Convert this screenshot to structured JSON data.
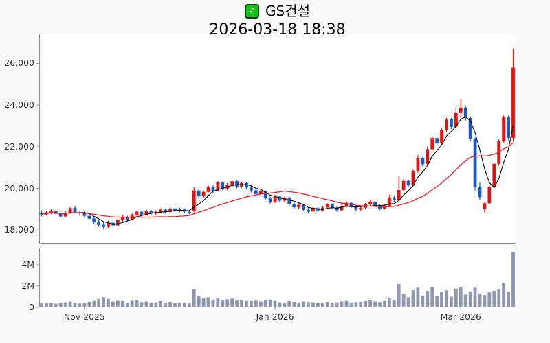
{
  "title": {
    "symbol": "GS건설",
    "datetime": "2026-03-18 18:38",
    "checkbox_glyph": "✓"
  },
  "colors": {
    "up_candle": "#dd1414",
    "down_candle": "#1a58c8",
    "ma_fast": "#000000",
    "ma_slow": "#ee2222",
    "volume_bar": "#9098b4",
    "spine": "#8a8a8a",
    "background": "#fafafa",
    "plot_background": "#ffffff",
    "check_green": "#17c317",
    "tick_text": "#33333f"
  },
  "chart_data": {
    "type": "candlestick",
    "title": "GS건설",
    "subtitle": "2026-03-18 18:38",
    "legend_position": "none",
    "grid": false,
    "price_axis_range": [
      17350,
      27400
    ],
    "volume_axis_range_millions": [
      0,
      5.8
    ],
    "y_ticks": [
      {
        "label": "18,000",
        "value": 18000
      },
      {
        "label": "20,000",
        "value": 20000
      },
      {
        "label": "22,000",
        "value": 22000
      },
      {
        "label": "24,000",
        "value": 24000
      },
      {
        "label": "26,000",
        "value": 26000
      }
    ],
    "x_ticks": [
      {
        "label": "Nov 2025",
        "index": 9
      },
      {
        "label": "Jan 2026",
        "index": 49
      },
      {
        "label": "Mar 2026",
        "index": 88
      }
    ],
    "volume_ticks": [
      {
        "label": "0",
        "value": 0
      },
      {
        "label": "2M",
        "value": 2
      },
      {
        "label": "4M",
        "value": 4
      }
    ],
    "volume_unit": "millions",
    "moving_averages": [
      {
        "name": "ma-fast",
        "window": 5,
        "color": "#000000",
        "width": 1.1
      },
      {
        "name": "ma-slow",
        "window": 20,
        "color": "#ee2222",
        "width": 1.3
      }
    ],
    "candles_format": [
      "open",
      "high",
      "low",
      "close",
      "volume_millions"
    ],
    "candles": [
      [
        18800,
        18950,
        18650,
        18750,
        0.45
      ],
      [
        18750,
        18900,
        18700,
        18850,
        0.38
      ],
      [
        18850,
        19000,
        18750,
        18900,
        0.42
      ],
      [
        18900,
        18950,
        18700,
        18780,
        0.35
      ],
      [
        18780,
        18850,
        18600,
        18650,
        0.4
      ],
      [
        18650,
        18900,
        18600,
        18820,
        0.48
      ],
      [
        18820,
        19100,
        18780,
        19050,
        0.55
      ],
      [
        19050,
        19150,
        18800,
        18850,
        0.42
      ],
      [
        18850,
        18950,
        18700,
        18800,
        0.36
      ],
      [
        18800,
        18900,
        18600,
        18680,
        0.4
      ],
      [
        18680,
        18750,
        18450,
        18550,
        0.52
      ],
      [
        18550,
        18650,
        18300,
        18400,
        0.6
      ],
      [
        18400,
        18500,
        18150,
        18250,
        0.78
      ],
      [
        18250,
        18400,
        18050,
        18150,
        0.95
      ],
      [
        18150,
        18450,
        18100,
        18350,
        0.8
      ],
      [
        18350,
        18400,
        18150,
        18220,
        0.55
      ],
      [
        18220,
        18550,
        18200,
        18480,
        0.6
      ],
      [
        18480,
        18700,
        18400,
        18620,
        0.58
      ],
      [
        18620,
        18680,
        18420,
        18500,
        0.45
      ],
      [
        18500,
        18800,
        18450,
        18720,
        0.62
      ],
      [
        18720,
        18950,
        18650,
        18880,
        0.66
      ],
      [
        18880,
        18920,
        18650,
        18740,
        0.5
      ],
      [
        18740,
        18980,
        18700,
        18900,
        0.55
      ],
      [
        18900,
        18960,
        18700,
        18790,
        0.42
      ],
      [
        18790,
        18950,
        18720,
        18870,
        0.48
      ],
      [
        18870,
        19050,
        18800,
        18980,
        0.58
      ],
      [
        18980,
        19020,
        18780,
        18860,
        0.44
      ],
      [
        18860,
        19100,
        18820,
        19040,
        0.52
      ],
      [
        19040,
        19080,
        18820,
        18910,
        0.4
      ],
      [
        18910,
        19060,
        18850,
        18990,
        0.46
      ],
      [
        18990,
        19050,
        18800,
        18880,
        0.42
      ],
      [
        18880,
        18950,
        18750,
        18820,
        0.38
      ],
      [
        18900,
        20050,
        18850,
        19900,
        1.7
      ],
      [
        19900,
        19980,
        19500,
        19620,
        1.1
      ],
      [
        19620,
        19900,
        19550,
        19830,
        0.85
      ],
      [
        19830,
        20150,
        19750,
        20080,
        0.95
      ],
      [
        20080,
        20150,
        19780,
        19880,
        0.72
      ],
      [
        19880,
        20350,
        19850,
        20280,
        0.9
      ],
      [
        20280,
        20330,
        19900,
        19990,
        0.68
      ],
      [
        19990,
        20250,
        19900,
        20180,
        0.75
      ],
      [
        20180,
        20400,
        20050,
        20340,
        0.82
      ],
      [
        20340,
        20380,
        20000,
        20090,
        0.65
      ],
      [
        20090,
        20320,
        20020,
        20260,
        0.7
      ],
      [
        20260,
        20300,
        19950,
        20040,
        0.6
      ],
      [
        20040,
        20120,
        19800,
        19900,
        0.58
      ],
      [
        19900,
        20050,
        19650,
        19720,
        0.62
      ],
      [
        19720,
        19950,
        19650,
        19870,
        0.55
      ],
      [
        19870,
        19900,
        19450,
        19520,
        0.68
      ],
      [
        19520,
        19600,
        19250,
        19340,
        0.72
      ],
      [
        19340,
        19680,
        19300,
        19610,
        0.6
      ],
      [
        19610,
        19650,
        19330,
        19410,
        0.48
      ],
      [
        19410,
        19620,
        19350,
        19560,
        0.45
      ],
      [
        19560,
        19600,
        19180,
        19260,
        0.58
      ],
      [
        19260,
        19350,
        19000,
        19090,
        0.52
      ],
      [
        19090,
        19280,
        19020,
        19210,
        0.46
      ],
      [
        19210,
        19260,
        18900,
        18970,
        0.55
      ],
      [
        18970,
        19060,
        18800,
        18890,
        0.5
      ],
      [
        18890,
        19120,
        18850,
        19060,
        0.48
      ],
      [
        19060,
        19100,
        18870,
        18940,
        0.4
      ],
      [
        18940,
        19150,
        18900,
        19080,
        0.45
      ],
      [
        19080,
        19280,
        19020,
        19230,
        0.52
      ],
      [
        19230,
        19270,
        19000,
        19070,
        0.44
      ],
      [
        19070,
        19120,
        18880,
        18950,
        0.48
      ],
      [
        18950,
        19220,
        18900,
        19160,
        0.55
      ],
      [
        19160,
        19380,
        19100,
        19310,
        0.6
      ],
      [
        19310,
        19350,
        19050,
        19120,
        0.46
      ],
      [
        19120,
        19180,
        18900,
        18980,
        0.5
      ],
      [
        18980,
        19150,
        18920,
        19070,
        0.52
      ],
      [
        19070,
        19300,
        19020,
        19240,
        0.58
      ],
      [
        19240,
        19420,
        19180,
        19360,
        0.65
      ],
      [
        19360,
        19400,
        19100,
        19170,
        0.55
      ],
      [
        19170,
        19250,
        18950,
        19030,
        0.5
      ],
      [
        19030,
        19220,
        18980,
        19150,
        0.6
      ],
      [
        19150,
        19700,
        19100,
        19560,
        0.85
      ],
      [
        19560,
        19650,
        19350,
        19430,
        0.7
      ],
      [
        19430,
        20600,
        19400,
        19920,
        2.2
      ],
      [
        19920,
        20450,
        19850,
        20360,
        1.3
      ],
      [
        20360,
        20420,
        20050,
        20140,
        0.95
      ],
      [
        20140,
        20900,
        20100,
        20820,
        1.6
      ],
      [
        20820,
        21600,
        20750,
        21450,
        1.85
      ],
      [
        21450,
        21520,
        21050,
        21160,
        1.1
      ],
      [
        21160,
        21980,
        21100,
        21880,
        1.55
      ],
      [
        21880,
        22520,
        21800,
        22420,
        1.9
      ],
      [
        22420,
        22500,
        22050,
        22170,
        1.05
      ],
      [
        22170,
        22880,
        22100,
        22790,
        1.45
      ],
      [
        22790,
        23400,
        22700,
        23310,
        1.6
      ],
      [
        23310,
        23380,
        22850,
        22960,
        1.0
      ],
      [
        22960,
        23900,
        22900,
        23650,
        1.75
      ],
      [
        23650,
        24300,
        23450,
        23880,
        1.9
      ],
      [
        23880,
        23950,
        23250,
        23380,
        1.2
      ],
      [
        23380,
        23450,
        22250,
        22380,
        1.5
      ],
      [
        22380,
        22450,
        19900,
        20050,
        1.85
      ],
      [
        20050,
        20300,
        19450,
        19580,
        1.3
      ],
      [
        19000,
        19350,
        18850,
        19280,
        1.15
      ],
      [
        19280,
        20150,
        19250,
        20080,
        1.4
      ],
      [
        20080,
        21250,
        20050,
        21180,
        1.55
      ],
      [
        21180,
        22350,
        21100,
        22260,
        1.7
      ],
      [
        22260,
        23500,
        22200,
        23420,
        2.3
      ],
      [
        23420,
        23500,
        22300,
        22430,
        1.45
      ],
      [
        22430,
        26700,
        22250,
        25800,
        5.2
      ]
    ]
  }
}
